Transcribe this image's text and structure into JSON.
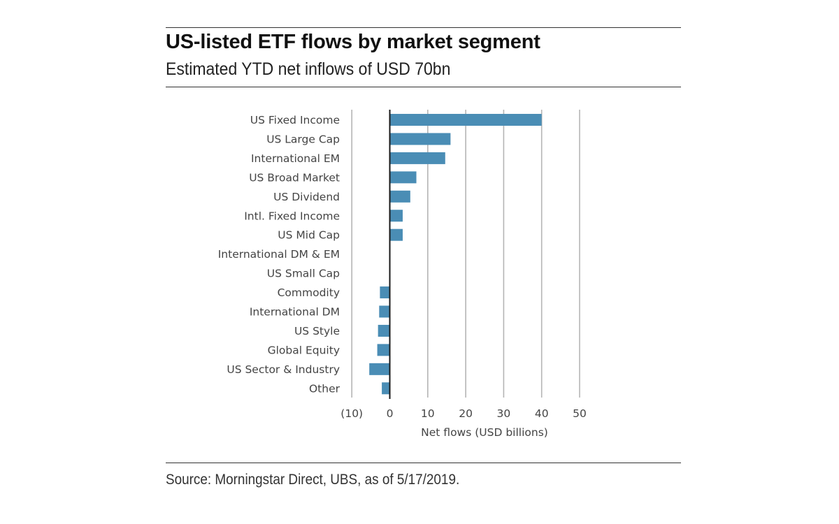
{
  "header": {
    "title": "US-listed ETF flows by market segment",
    "subtitle": "Estimated YTD net inflows of USD 70bn"
  },
  "footer": {
    "source": "Source: Morningstar Direct, UBS, as of 5/17/2019."
  },
  "colors": {
    "bar": "#4a8db5",
    "grid": "#b5b5b5",
    "zero_axis": "#1a1a1a"
  },
  "chart_data": {
    "type": "bar",
    "orientation": "horizontal",
    "title": "US-listed ETF flows by market segment",
    "subtitle": "Estimated YTD net inflows of USD 70bn",
    "xlabel": "Net flows (USD billions)",
    "ylabel": "",
    "xlim": [
      -10,
      50
    ],
    "xticks": [
      -10,
      0,
      10,
      20,
      30,
      40,
      50
    ],
    "xtick_labels": [
      "(10)",
      "0",
      "10",
      "20",
      "30",
      "40",
      "50"
    ],
    "grid": true,
    "legend": "none",
    "categories": [
      "US Fixed Income",
      "US Large Cap",
      "International EM",
      "US Broad Market",
      "US Dividend",
      "Intl. Fixed Income",
      "US Mid Cap",
      "International DM & EM",
      "US Small Cap",
      "Commodity",
      "International DM",
      "US Style",
      "Global Equity",
      "US Sector & Industry",
      "Other"
    ],
    "values": [
      40,
      16,
      14.6,
      7,
      5.4,
      3.4,
      3.4,
      0,
      0,
      -2.6,
      -2.8,
      -3.1,
      -3.3,
      -5.4,
      -2.1
    ]
  }
}
